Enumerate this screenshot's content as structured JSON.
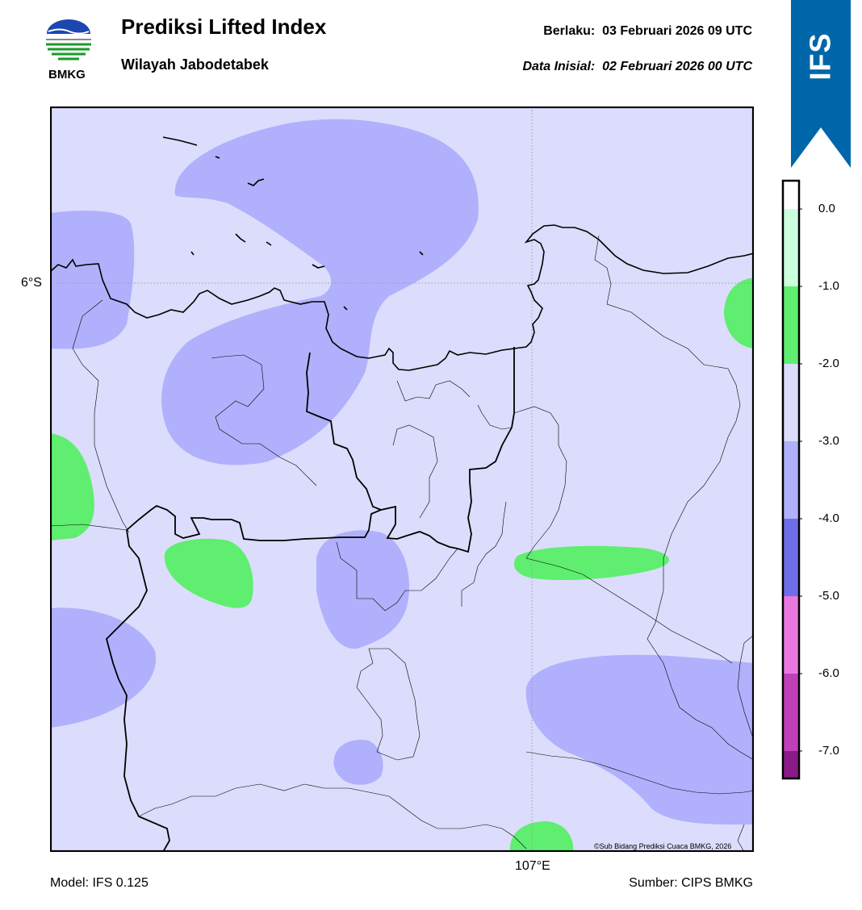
{
  "header": {
    "title": "Prediksi Lifted Index",
    "subtitle": "Wilayah Jabodetabek",
    "valid_label": "Berlaku:",
    "valid_value": "03 Februari 2026 09 UTC",
    "init_label": "Data Inisial:",
    "init_value": "02 Februari 2026 00 UTC",
    "valid_text": "Berlaku:  03 Februari 2026 09 UTC",
    "init_text": "Data Inisial:  02 Februari 2026 00 UTC"
  },
  "logo": {
    "text": "BMKG"
  },
  "badge": {
    "text": "IFS",
    "color": "#0066aa"
  },
  "map": {
    "lat_tick": "6°S",
    "lon_tick": "107°E",
    "credit": "©Sub Bidang Prediksi Cuaca BMKG, 2026",
    "base_color": "#dcdcfc"
  },
  "colorbar": {
    "ticks": [
      "0.0",
      "-1.0",
      "-2.0",
      "-3.0",
      "-4.0",
      "-5.0",
      "-6.0",
      "-7.0"
    ],
    "colors": [
      "#ccffdd",
      "#5fee70",
      "#dcdcfc",
      "#b0b0fc",
      "#6e6ee8",
      "#e878e0",
      "#c040b8",
      "#8a1a88"
    ]
  },
  "footer": {
    "model": "Model: IFS 0.125",
    "source": "Sumber: CIPS BMKG"
  }
}
